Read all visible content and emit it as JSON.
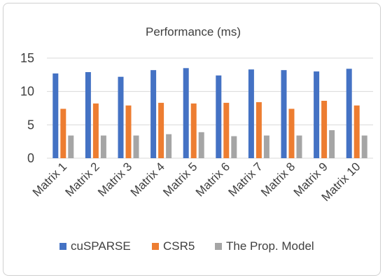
{
  "chart_data": {
    "type": "bar",
    "title": "Performance (ms)",
    "categories": [
      "Matrix 1",
      "Matrix 2",
      "Matrix 3",
      "Matrix 4",
      "Matrix 5",
      "Matrix 6",
      "Matrix 7",
      "Matrix 8",
      "Matrix 9",
      "Matrix 10"
    ],
    "series": [
      {
        "name": "cuSPARSE",
        "color": "#4472C4",
        "values": [
          12.7,
          12.9,
          12.2,
          13.2,
          13.5,
          12.4,
          13.3,
          13.2,
          13.0,
          13.4
        ]
      },
      {
        "name": "CSR5",
        "color": "#ED7D31",
        "values": [
          7.4,
          8.2,
          7.9,
          8.3,
          8.2,
          8.3,
          8.4,
          7.4,
          8.6,
          7.9
        ]
      },
      {
        "name": "The Prop. Model",
        "color": "#A5A5A5",
        "values": [
          3.4,
          3.4,
          3.4,
          3.6,
          3.9,
          3.3,
          3.4,
          3.4,
          4.2,
          3.4
        ]
      }
    ],
    "ylim": [
      0,
      15
    ],
    "yticks": [
      0,
      5,
      10,
      15
    ],
    "grid": true,
    "legend_position": "bottom"
  }
}
